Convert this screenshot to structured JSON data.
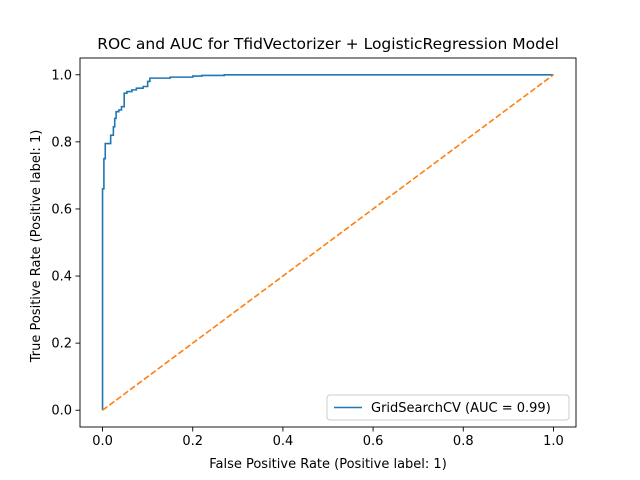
{
  "chart_data": {
    "type": "line",
    "title": "ROC and AUC for TfidVectorizer + LogisticRegression Model",
    "xlabel": "False Positive Rate (Positive label: 1)",
    "ylabel": "True Positive Rate (Positive label: 1)",
    "xlim": [
      -0.05,
      1.05
    ],
    "ylim": [
      -0.05,
      1.05
    ],
    "xticks": [
      0.0,
      0.2,
      0.4,
      0.6,
      0.8,
      1.0
    ],
    "yticks": [
      0.0,
      0.2,
      0.4,
      0.6,
      0.8,
      1.0
    ],
    "xtick_labels": [
      "0.0",
      "0.2",
      "0.4",
      "0.6",
      "0.8",
      "1.0"
    ],
    "ytick_labels": [
      "0.0",
      "0.2",
      "0.4",
      "0.6",
      "0.8",
      "1.0"
    ],
    "grid": false,
    "legend_position": "lower-right",
    "series": [
      {
        "name": "GridSearchCV (AUC = 0.99)",
        "style": "solid",
        "color": "#1f77b4",
        "x": [
          0.0,
          0.0,
          0.003,
          0.003,
          0.006,
          0.006,
          0.012,
          0.012,
          0.018,
          0.018,
          0.024,
          0.024,
          0.027,
          0.027,
          0.03,
          0.03,
          0.036,
          0.036,
          0.042,
          0.042,
          0.048,
          0.048,
          0.054,
          0.054,
          0.065,
          0.065,
          0.075,
          0.075,
          0.09,
          0.09,
          0.1,
          0.1,
          0.105,
          0.105,
          0.15,
          0.15,
          0.2,
          0.2,
          0.22,
          0.22,
          0.27,
          0.27,
          1.0
        ],
        "y": [
          0.0,
          0.66,
          0.66,
          0.75,
          0.75,
          0.795,
          0.795,
          0.795,
          0.795,
          0.82,
          0.82,
          0.845,
          0.845,
          0.87,
          0.87,
          0.89,
          0.89,
          0.895,
          0.895,
          0.905,
          0.905,
          0.945,
          0.945,
          0.95,
          0.95,
          0.955,
          0.955,
          0.96,
          0.96,
          0.965,
          0.965,
          0.98,
          0.98,
          0.99,
          0.99,
          0.993,
          0.993,
          0.996,
          0.996,
          0.998,
          0.998,
          1.0,
          1.0
        ]
      },
      {
        "name": "",
        "style": "dashed",
        "color": "#ff7f0e",
        "x": [
          0.0,
          1.0
        ],
        "y": [
          0.0,
          1.0
        ]
      }
    ]
  }
}
